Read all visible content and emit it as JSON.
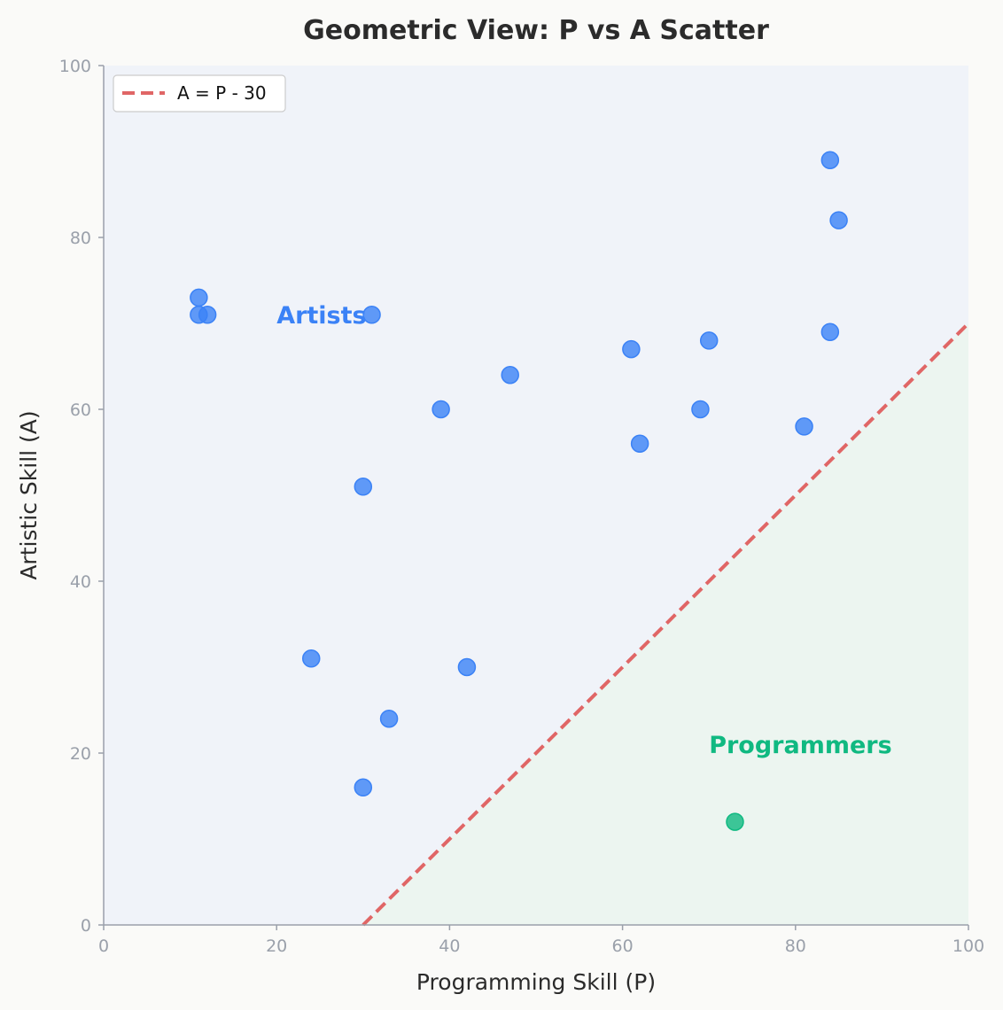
{
  "chart_data": {
    "type": "scatter",
    "title": "Geometric View: P vs A Scatter",
    "xlabel": "Programming Skill (P)",
    "ylabel": "Artistic Skill (A)",
    "xlim": [
      0,
      100
    ],
    "ylim": [
      0,
      100
    ],
    "xticks": [
      0,
      20,
      40,
      60,
      80,
      100
    ],
    "yticks": [
      0,
      20,
      40,
      60,
      80,
      100
    ],
    "grid": false,
    "legend_position": "top-left",
    "series": [
      {
        "color": "#3b82f6",
        "points": [
          {
            "x": 11,
            "y": 73
          },
          {
            "x": 11,
            "y": 71
          },
          {
            "x": 12,
            "y": 71
          },
          {
            "x": 31,
            "y": 71
          },
          {
            "x": 39,
            "y": 60
          },
          {
            "x": 47,
            "y": 64
          },
          {
            "x": 30,
            "y": 51
          },
          {
            "x": 24,
            "y": 31
          },
          {
            "x": 42,
            "y": 30
          },
          {
            "x": 33,
            "y": 24
          },
          {
            "x": 30,
            "y": 16
          },
          {
            "x": 61,
            "y": 67
          },
          {
            "x": 62,
            "y": 56
          },
          {
            "x": 69,
            "y": 60
          },
          {
            "x": 70,
            "y": 68
          },
          {
            "x": 81,
            "y": 58
          },
          {
            "x": 84,
            "y": 69
          },
          {
            "x": 84,
            "y": 89
          },
          {
            "x": 85,
            "y": 82
          }
        ]
      },
      {
        "color": "#10b981",
        "points": [
          {
            "x": 73,
            "y": 12
          }
        ]
      }
    ],
    "reference_line": {
      "label": "A = P - 30",
      "offset": -30,
      "color": "#e06666",
      "style": "dashed"
    },
    "regions": [
      {
        "label": "Artists",
        "color": "#3b82f6",
        "x": 20,
        "y": 70
      },
      {
        "label": "Programmers",
        "color": "#10b981",
        "x": 70,
        "y": 20
      }
    ],
    "background_colors": {
      "upper_region": "#f0f3f9",
      "lower_region": "#ecf5f0",
      "page": "#fafaf8"
    }
  }
}
